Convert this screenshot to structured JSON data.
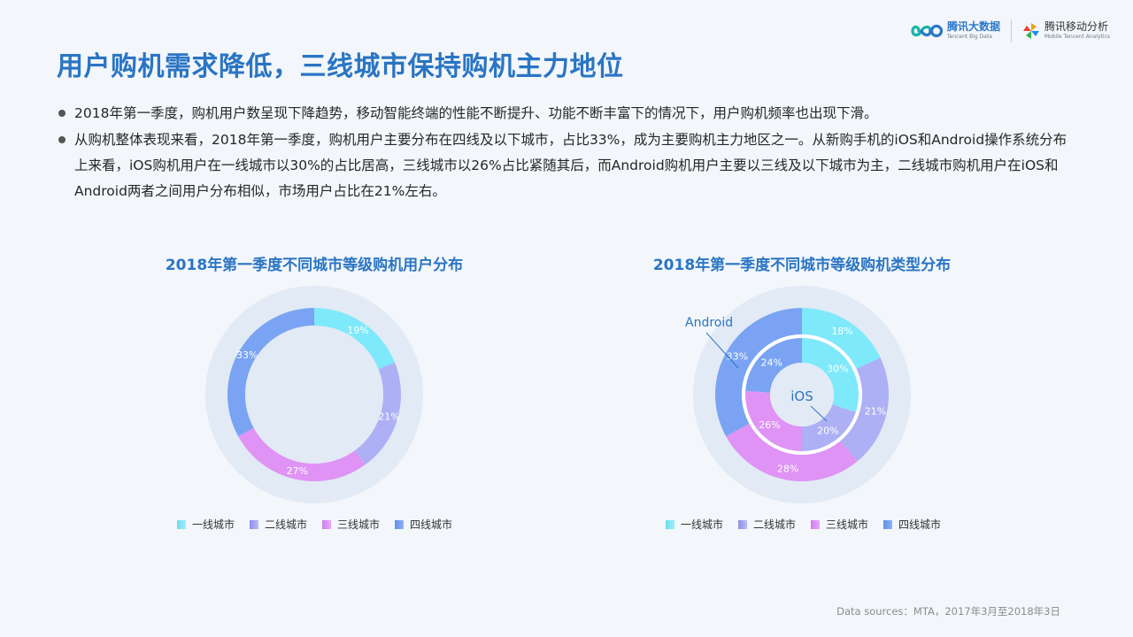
{
  "logos": {
    "tbd_name": "腾讯大数据",
    "tbd_sub": "Tencent Big Data",
    "mta_name": "腾讯移动分析",
    "mta_sub": "Mobile Tencent Analytics"
  },
  "title": "用户购机需求降低，三线城市保持购机主力地位",
  "bullets": [
    "2018年第一季度，购机用户数呈现下降趋势，移动智能终端的性能不断提升、功能不断丰富下的情况下，用户购机频率也出现下滑。",
    "从购机整体表现来看，2018年第一季度，购机用户主要分布在四线及以下城市，占比33%，成为主要购机主力地区之一。从新购手机的iOS和Android操作系统分布上来看，iOS购机用户在一线城市以30%的占比居高，三线城市以26%占比紧随其后，而Android购机用户主要以三线及以下城市为主，二线城市购机用户在iOS和Android两者之间用户分布相似，市场用户占比在21%左右。"
  ],
  "colors": {
    "tier1": "#7ee9fb",
    "tier2": "#aeb0f5",
    "tier3": "#df93f5",
    "tier4": "#7aa4f3",
    "title_blue": "#2a75c3",
    "halo": "#e2eaf5"
  },
  "chart_data": [
    {
      "type": "pie",
      "title": "2018年第一季度不同城市等级购机用户分布",
      "categories": [
        "一线城市",
        "二线城市",
        "三线城市",
        "四线城市"
      ],
      "values": [
        19,
        21,
        27,
        33
      ],
      "labels": [
        "19%",
        "21%",
        "27%",
        "33%"
      ],
      "legend": "bottom"
    },
    {
      "type": "pie",
      "title": "2018年第一季度不同城市等级购机类型分布",
      "categories": [
        "一线城市",
        "二线城市",
        "三线城市",
        "四线城市"
      ],
      "series": [
        {
          "name": "Android",
          "values": [
            18,
            21,
            28,
            33
          ],
          "labels": [
            "18%",
            "21%",
            "28%",
            "33%"
          ]
        },
        {
          "name": "iOS",
          "values": [
            30,
            20,
            26,
            24
          ],
          "labels": [
            "30%",
            "20%",
            "26%",
            "24%"
          ]
        }
      ],
      "legend": "bottom"
    }
  ],
  "legend_labels": [
    "一线城市",
    "二线城市",
    "三线城市",
    "四线城市"
  ],
  "source": "Data sources：MTA，2017年3月至2018年3日"
}
